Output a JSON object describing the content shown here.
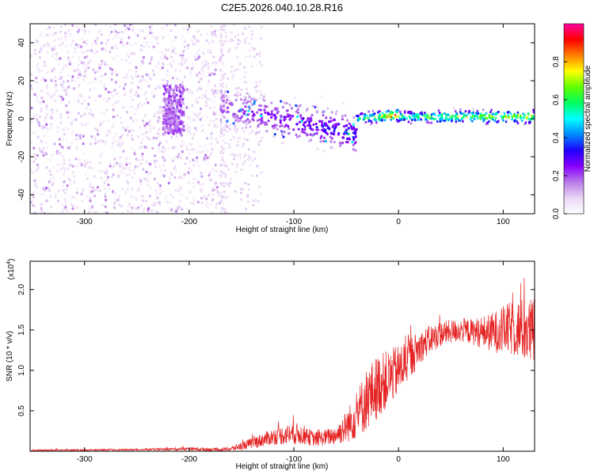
{
  "title": "C2E5.2026.040.10.28.R16",
  "chart_data": [
    {
      "type": "heatmap",
      "xlabel": "Height of straight line (km)",
      "ylabel": "Frequency (Hz)",
      "xlim": [
        -352,
        130
      ],
      "ylim": [
        -50,
        50
      ],
      "x_ticks": [
        -300,
        -200,
        -100,
        0,
        100
      ],
      "y_ticks": [
        -40,
        -20,
        0,
        20,
        40
      ],
      "colorbar": {
        "label": "Normalized spectral amplitude",
        "range": [
          0,
          1
        ],
        "ticks": [
          "0.0",
          "0.2",
          "0.4",
          "0.6",
          "0.8"
        ],
        "colormap": [
          "#ffffff",
          "#e9d5f5",
          "#b87ae8",
          "#8800ff",
          "#2000ff",
          "#0088ff",
          "#00ffff",
          "#00ff60",
          "#60ff00",
          "#ffff00",
          "#ff8000",
          "#ff0000",
          "#ff00a0"
        ]
      },
      "regions": [
        {
          "x_range": [
            -352,
            -170
          ],
          "f_range": [
            -50,
            50
          ],
          "level": 0.12,
          "pattern": "scattered noise"
        },
        {
          "x_range": [
            -225,
            -205
          ],
          "f_range": [
            -8,
            18
          ],
          "level": 0.18,
          "pattern": "dense blob"
        },
        {
          "x_range": [
            -170,
            -40
          ],
          "f_center": [
            6,
            -8
          ],
          "f_halfwidth": [
            10,
            8
          ],
          "level": [
            0.2,
            0.35
          ],
          "pattern": "broad scattered band"
        },
        {
          "x_range": [
            -40,
            0
          ],
          "f_center": [
            0,
            2
          ],
          "f_halfwidth": [
            2.5,
            2.5
          ],
          "level": [
            0.5,
            0.9
          ],
          "pattern": "narrow band"
        },
        {
          "x_range": [
            0,
            130
          ],
          "f_center": [
            1,
            1
          ],
          "f_halfwidth": [
            2.5,
            3
          ],
          "level": [
            0.6,
            0.7
          ],
          "pattern": "steady narrow band"
        }
      ]
    },
    {
      "type": "line",
      "xlabel": "Height of straight line (km)",
      "ylabel": "SNR (10 * v/v)",
      "y_multiplier": "(x10",
      "y_multiplier_exp": "4",
      "y_multiplier_close": ")",
      "xlim": [
        -352,
        130
      ],
      "ylim": [
        0,
        2.35
      ],
      "x_ticks": [
        -300,
        -200,
        -100,
        0,
        100
      ],
      "y_ticks": [
        0.5,
        1.0,
        1.5,
        2.0
      ],
      "y_tick_labels": [
        "0.5",
        "1.0",
        "1.5",
        "2.0"
      ],
      "line_color": "#e52222",
      "envelope": {
        "x": [
          -352,
          -250,
          -200,
          -170,
          -160,
          -140,
          -120,
          -100,
          -90,
          -80,
          -70,
          -60,
          -50,
          -40,
          -30,
          -20,
          -10,
          0,
          10,
          20,
          30,
          40,
          50,
          60,
          70,
          80,
          90,
          100,
          110,
          120,
          130
        ],
        "mean": [
          0.01,
          0.02,
          0.03,
          0.02,
          0.03,
          0.1,
          0.18,
          0.22,
          0.2,
          0.15,
          0.17,
          0.2,
          0.3,
          0.45,
          0.65,
          0.8,
          0.9,
          1.0,
          1.15,
          1.28,
          1.38,
          1.45,
          1.48,
          1.5,
          1.48,
          1.47,
          1.47,
          1.5,
          1.52,
          1.5,
          1.45
        ],
        "spread": [
          0.01,
          0.01,
          0.02,
          0.02,
          0.03,
          0.07,
          0.1,
          0.14,
          0.12,
          0.09,
          0.1,
          0.12,
          0.2,
          0.3,
          0.4,
          0.4,
          0.35,
          0.32,
          0.28,
          0.2,
          0.18,
          0.16,
          0.15,
          0.15,
          0.16,
          0.2,
          0.25,
          0.3,
          0.35,
          0.4,
          0.45
        ]
      }
    }
  ]
}
